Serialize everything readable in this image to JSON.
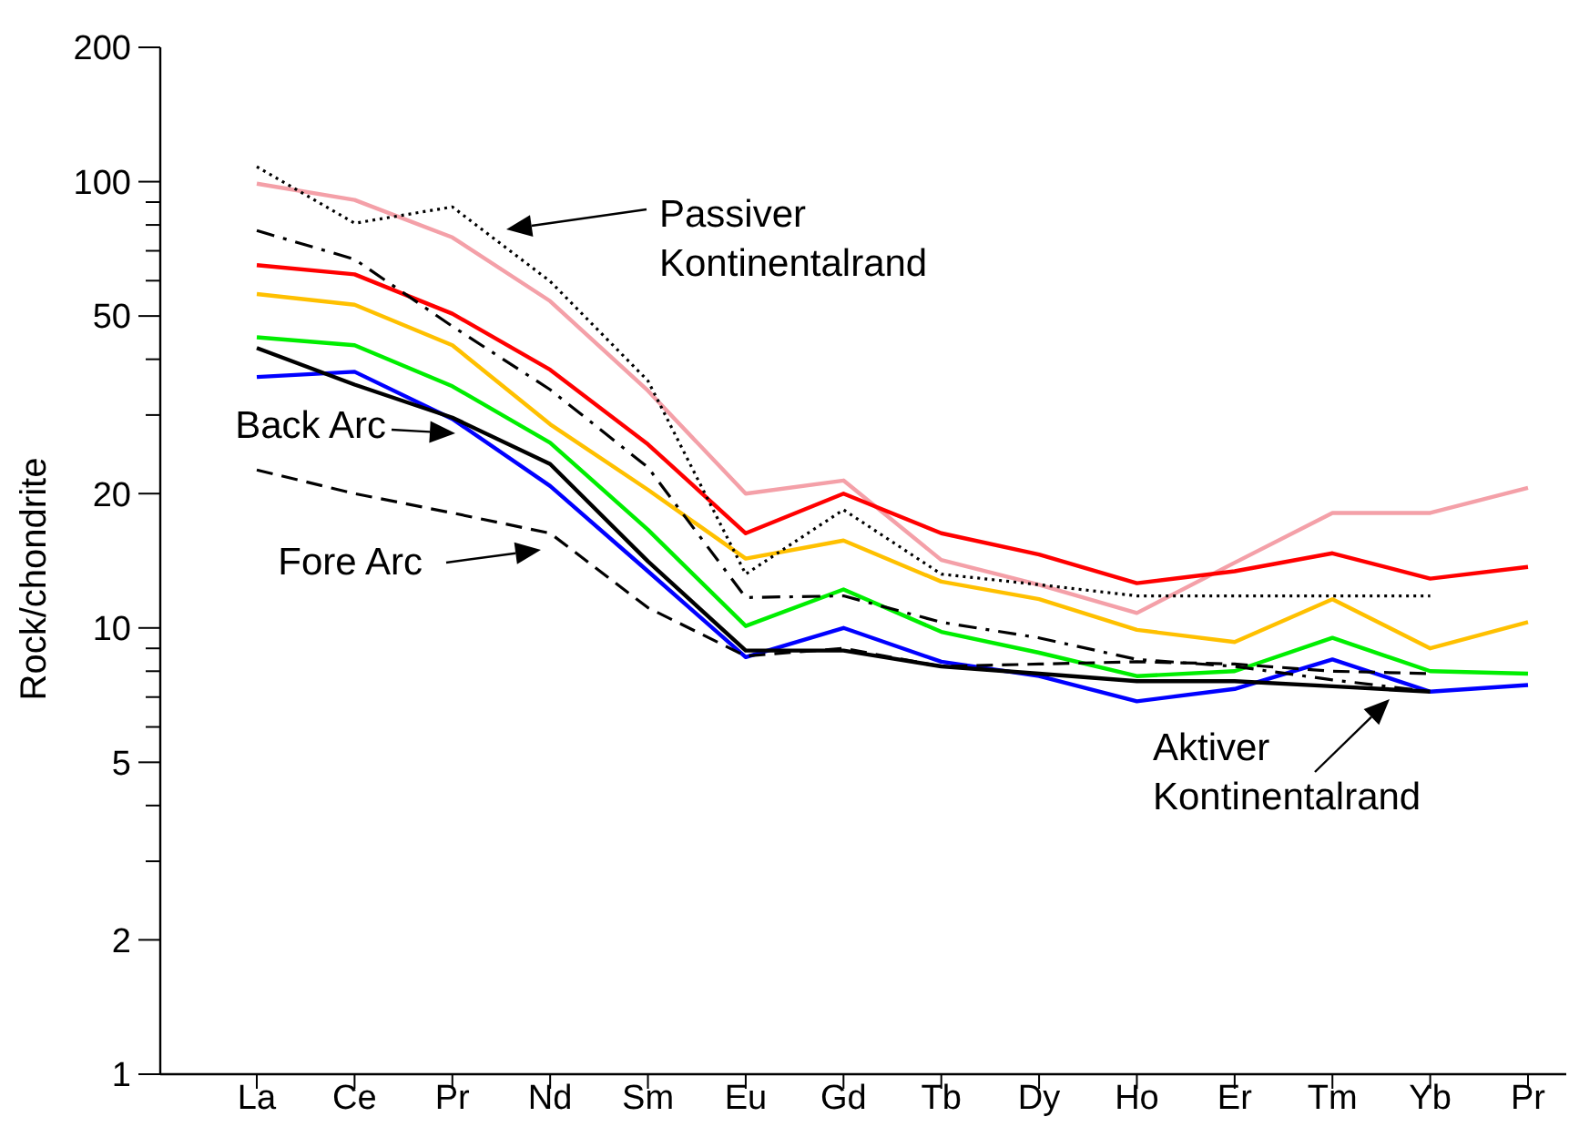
{
  "chart_data": {
    "type": "line",
    "ylabel": "Rock/chondrite",
    "log": true,
    "categories": [
      "La",
      "Ce",
      "Pr",
      "Nd",
      "Sm",
      "Eu",
      "Gd",
      "Tb",
      "Dy",
      "Ho",
      "Er",
      "Tm",
      "Yb",
      "Pr"
    ],
    "ylim": [
      1,
      200
    ],
    "yticks": [
      1,
      2,
      {
        "value": 3,
        "label": null
      },
      {
        "value": 4,
        "label": null
      },
      5,
      {
        "value": 6,
        "label": null
      },
      {
        "value": 7,
        "label": null
      },
      {
        "value": 8,
        "label": null
      },
      {
        "value": 9,
        "label": null
      },
      10,
      20,
      {
        "value": 30,
        "label": null
      },
      {
        "value": 40,
        "label": null
      },
      50,
      {
        "value": 60,
        "label": null
      },
      {
        "value": 70,
        "label": null
      },
      {
        "value": 80,
        "label": null
      },
      {
        "value": 90,
        "label": null
      },
      100,
      200
    ],
    "series": [
      {
        "color": "#f4a0a8",
        "line_style": "solid",
        "values": [
          99,
          91,
          75,
          54,
          34,
          20,
          21.4,
          14.2,
          12.5,
          10.8,
          14,
          18.1,
          18.1,
          20.6
        ]
      },
      {
        "color": "#ff0000",
        "line_style": "solid",
        "values": [
          65,
          62,
          50.6,
          37.9,
          25.8,
          16.3,
          20,
          16.3,
          14.6,
          12.6,
          13.4,
          14.7,
          12.9,
          13.7
        ]
      },
      {
        "color": "#ffc000",
        "line_style": "solid",
        "values": [
          56,
          53,
          43,
          28.6,
          20.4,
          14.3,
          15.7,
          12.7,
          11.6,
          9.9,
          9.3,
          11.6,
          9,
          10.3
        ]
      },
      {
        "color": "#00ee00",
        "line_style": "solid",
        "values": [
          44.8,
          43,
          34.8,
          26,
          16.6,
          10.1,
          12.2,
          9.8,
          8.8,
          7.8,
          8,
          9.5,
          8,
          7.9
        ]
      },
      {
        "color": "#0000ff",
        "line_style": "solid",
        "values": [
          36.5,
          37.5,
          29.4,
          20.8,
          13.4,
          8.6,
          10,
          8.4,
          7.8,
          6.85,
          7.3,
          8.5,
          7.2,
          7.45
        ]
      },
      {
        "color": "#000000",
        "line_style": "dotted",
        "values": [
          108,
          80.7,
          87.8,
          59.8,
          35.8,
          13.2,
          18.4,
          13.2,
          12.5,
          11.8,
          11.8,
          11.8,
          11.8,
          null
        ]
      },
      {
        "color": "#000000",
        "line_style": "dashdot",
        "values": [
          77.7,
          67,
          47.4,
          34.2,
          22.9,
          11.7,
          11.8,
          10.3,
          9.5,
          8.5,
          8.2,
          7.65,
          7.2,
          null
        ]
      },
      {
        "color": "#000000",
        "line_style": "solid",
        "values": [
          42.4,
          35.1,
          29.6,
          23.3,
          14.1,
          8.9,
          8.9,
          8.2,
          7.9,
          7.6,
          7.6,
          7.4,
          7.2,
          null
        ]
      },
      {
        "color": "#000000",
        "line_style": "dashed",
        "values": [
          22.6,
          20,
          18.1,
          16.3,
          11.1,
          8.65,
          9,
          8.2,
          8.3,
          8.4,
          8.3,
          8,
          7.9,
          null
        ]
      }
    ],
    "annotations": [
      "Passiver Kontinentalrand",
      "Back Arc",
      "Fore Arc",
      "Aktiver Kontinentalrand"
    ]
  }
}
